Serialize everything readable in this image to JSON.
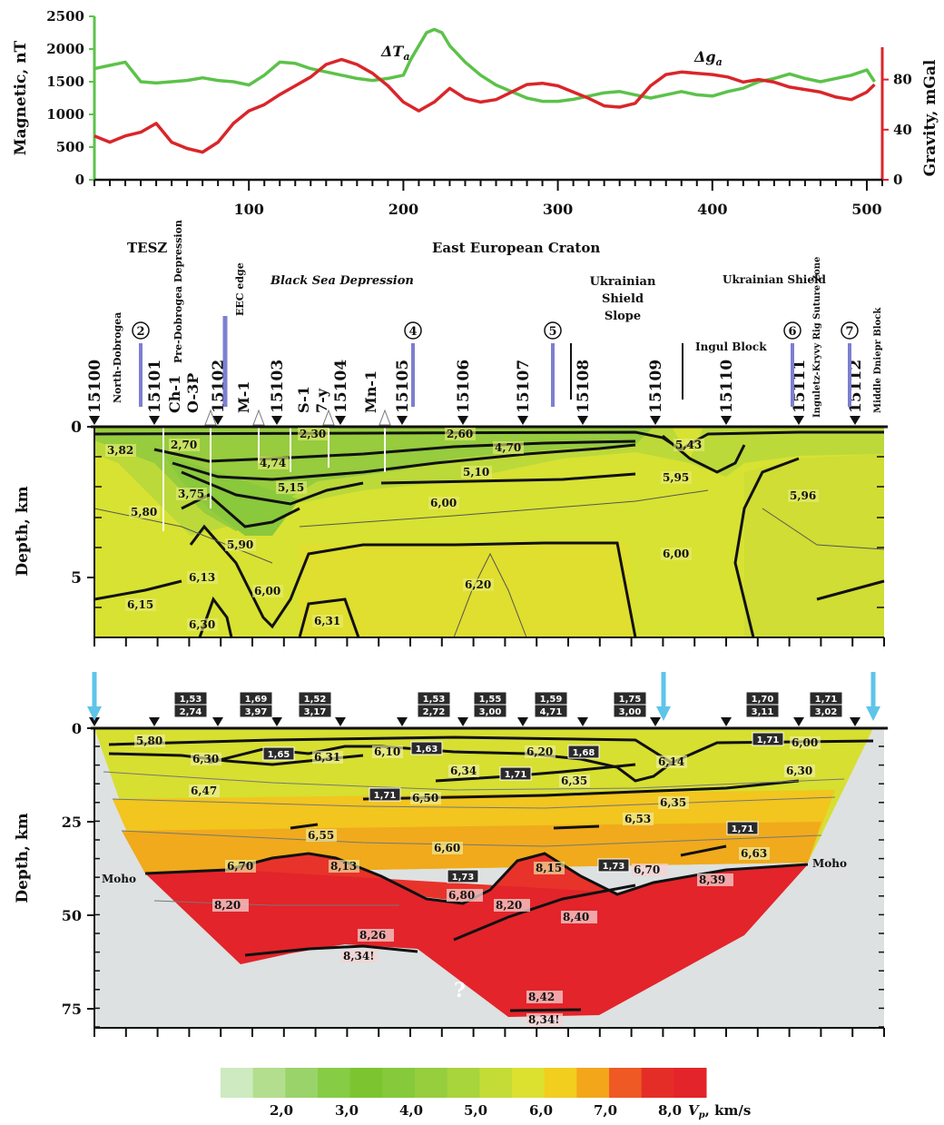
{
  "top_chart": {
    "left_axis_label": "Magnetic, nT",
    "right_axis_label": "Gravity, mGal",
    "left_ticks": [
      "0",
      "500",
      "1000",
      "1500",
      "2000",
      "2500"
    ],
    "right_ticks": [
      "0",
      "40",
      "80"
    ],
    "x_ticks": [
      "100",
      "200",
      "300",
      "400",
      "500"
    ],
    "dT_label": "ΔT",
    "dT_sub": "a",
    "dg_label": "Δg",
    "dg_sub": "a",
    "colors": {
      "magnetic": "#5cc24a",
      "gravity": "#d9262a",
      "left_axis": "#5cc24a",
      "right_axis": "#d9262a"
    }
  },
  "chart_data": [
    {
      "type": "line",
      "x_range": [
        0,
        510
      ],
      "series": [
        {
          "name": "ΔTa",
          "axis": "left",
          "x": [
            0,
            10,
            20,
            30,
            40,
            50,
            60,
            70,
            80,
            90,
            100,
            110,
            120,
            130,
            140,
            150,
            160,
            170,
            180,
            190,
            200,
            205,
            210,
            215,
            220,
            225,
            230,
            240,
            250,
            260,
            270,
            280,
            290,
            300,
            310,
            320,
            330,
            340,
            350,
            360,
            370,
            380,
            390,
            400,
            410,
            420,
            430,
            440,
            450,
            460,
            470,
            480,
            490,
            500,
            505
          ],
          "y": [
            1700,
            1750,
            1800,
            1500,
            1480,
            1500,
            1520,
            1560,
            1520,
            1500,
            1450,
            1600,
            1800,
            1780,
            1700,
            1650,
            1600,
            1550,
            1520,
            1550,
            1600,
            1850,
            2050,
            2250,
            2300,
            2250,
            2050,
            1800,
            1600,
            1450,
            1350,
            1250,
            1200,
            1200,
            1230,
            1280,
            1330,
            1350,
            1300,
            1250,
            1300,
            1350,
            1300,
            1280,
            1350,
            1400,
            1500,
            1550,
            1620,
            1550,
            1500,
            1550,
            1600,
            1680,
            1500
          ]
        },
        {
          "name": "Δga",
          "axis": "right",
          "x": [
            0,
            10,
            20,
            30,
            40,
            50,
            60,
            70,
            80,
            90,
            100,
            110,
            120,
            130,
            140,
            150,
            160,
            170,
            180,
            190,
            200,
            210,
            220,
            230,
            240,
            250,
            260,
            270,
            280,
            290,
            300,
            310,
            320,
            330,
            340,
            350,
            360,
            370,
            380,
            390,
            400,
            410,
            420,
            430,
            440,
            450,
            460,
            470,
            480,
            490,
            500,
            505
          ],
          "y": [
            35,
            30,
            35,
            38,
            45,
            30,
            25,
            22,
            30,
            45,
            55,
            60,
            68,
            75,
            82,
            92,
            96,
            92,
            85,
            75,
            62,
            55,
            62,
            73,
            65,
            62,
            64,
            70,
            76,
            77,
            75,
            70,
            65,
            59,
            58,
            61,
            75,
            84,
            86,
            85,
            84,
            82,
            78,
            80,
            78,
            74,
            72,
            70,
            66,
            64,
            70,
            76
          ]
        }
      ],
      "left_ylim": [
        0,
        2500
      ],
      "right_ylim": [
        0,
        100
      ]
    }
  ],
  "section1": {
    "tesz": "TESZ",
    "craton": "East European Craton",
    "black_sea": "Black Sea Depression",
    "ukr_slope": [
      "Ukrainian",
      "Shield",
      "Slope"
    ],
    "ukr_shield": "Ukrainian Shield",
    "ingul": "Ingul Block",
    "vertical_labels": [
      "North-Dobrogea",
      "Pre-Dobrogea Depression",
      "EEC edge",
      "Inguletz-Kryvy Rig Suture Zone",
      "Middle Dniepr Block"
    ],
    "wells": [
      "Ch-1",
      "O-3P",
      "M-1",
      "S-1",
      "7-y",
      "Mn-1"
    ],
    "stations": [
      "15100",
      "15101",
      "15102",
      "15103",
      "15104",
      "15105",
      "15106",
      "15107",
      "15108",
      "15109",
      "15110",
      "15111",
      "15112"
    ],
    "circles": [
      "2",
      "4",
      "5",
      "6",
      "7"
    ],
    "depth_label": "Depth, km",
    "depth_ticks": [
      "0",
      "5"
    ],
    "velocities": [
      "3,82",
      "2,70",
      "4,74",
      "5,15",
      "2,30",
      "3,75",
      "5,80",
      "5,90",
      "6,13",
      "6,00",
      "6,15",
      "6,30",
      "6,31",
      "2,60",
      "4,70",
      "5,10",
      "6,00",
      "6,20",
      "5,43",
      "5,95",
      "5,96",
      "6,00"
    ]
  },
  "section2": {
    "depth_label": "Depth, km",
    "depth_ticks": [
      "0",
      "25",
      "50",
      "75"
    ],
    "moho": "Moho",
    "question": "?",
    "velocities": [
      "5,80",
      "6,30",
      "6,31",
      "6,47",
      "6,10",
      "6,34",
      "6,20",
      "6,35",
      "6,14",
      "6,00",
      "6,30",
      "6,50",
      "6,35",
      "6,55",
      "6,53",
      "6,60",
      "6,63",
      "6,70",
      "8,13",
      "8,15",
      "6,70",
      "8,39",
      "6,80",
      "8,20",
      "8,20",
      "8,40",
      "8,26",
      "8,34!",
      "8,42",
      "8,34!"
    ],
    "vpvs_pairs": [
      [
        "1,53",
        "2,74"
      ],
      [
        "1,69",
        "3,97"
      ],
      [
        "1,52",
        "3,17"
      ],
      [
        "1,53",
        "2,72"
      ],
      [
        "1,55",
        "3,00"
      ],
      [
        "1,59",
        "4,71"
      ],
      [
        "1,75",
        "3,00"
      ],
      [
        "1,70",
        "3,11"
      ],
      [
        "1,71",
        "3,02"
      ]
    ],
    "vpvs_single": [
      "1,65",
      "1,63",
      "1,71",
      "1,68",
      "1,71",
      "1,71",
      "1,71",
      "1,73",
      "1,73"
    ]
  },
  "legend": {
    "ticks": [
      "2,0",
      "3,0",
      "4,0",
      "5,0",
      "6,0",
      "7,0",
      "8,0"
    ],
    "unit_V": "V",
    "unit_p": "p",
    "unit_rest": ", km/s",
    "colors": [
      "#cdeac0",
      "#b2de8e",
      "#9ad36a",
      "#86cc45",
      "#7cc531",
      "#86c93a",
      "#96ce3e",
      "#a8d43c",
      "#c4dc36",
      "#dce12f",
      "#f2ce1f",
      "#f3a61a",
      "#ef5a24",
      "#e52d27",
      "#e3242a"
    ]
  }
}
